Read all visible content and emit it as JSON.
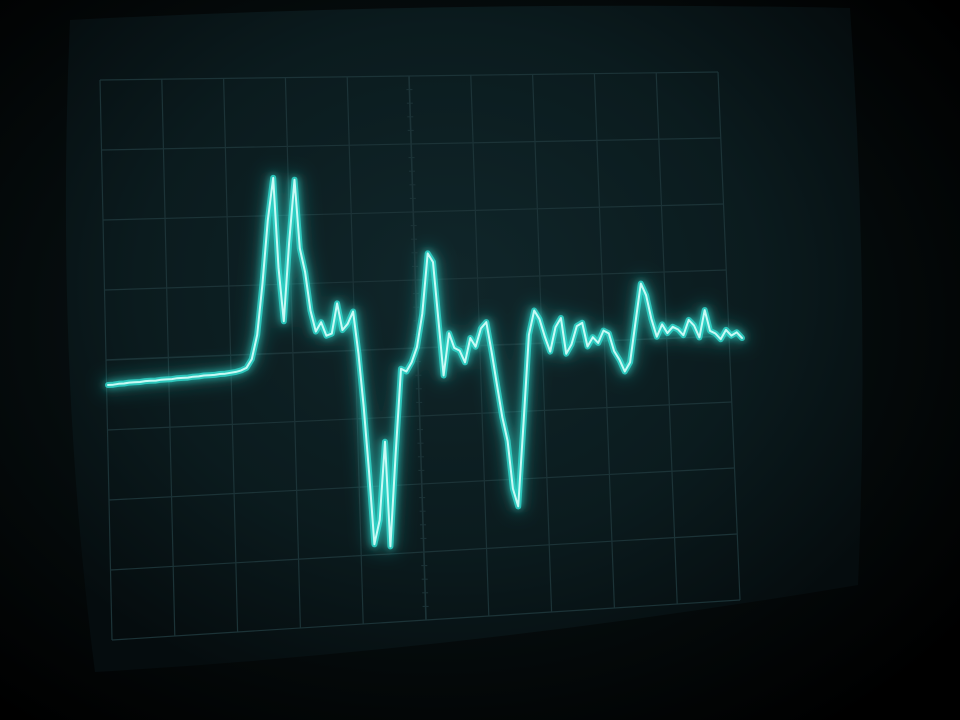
{
  "photo": {
    "subject": "",
    "colors": {
      "background": "#000000",
      "screen_glass": "#0b1b1e",
      "screen_glass_edge": "#050c0e",
      "graticule": "#1c3337",
      "trace_core": "#d9fffb",
      "trace_glow": "#2fd3c8"
    },
    "graticule": {
      "columns": 10,
      "rows": 8
    },
    "trace_samples": [
      0.0,
      0.0,
      0.01,
      0.01,
      0.02,
      0.02,
      0.02,
      0.03,
      0.03,
      0.03,
      0.04,
      0.04,
      0.04,
      0.05,
      0.05,
      0.05,
      0.06,
      0.06,
      0.07,
      0.07,
      0.07,
      0.08,
      0.08,
      0.09,
      0.1,
      0.12,
      0.16,
      0.3,
      0.7,
      1.55,
      2.6,
      3.3,
      1.8,
      0.9,
      2.2,
      3.25,
      2.1,
      1.7,
      1.05,
      0.7,
      0.85,
      0.62,
      0.65,
      1.15,
      0.7,
      0.8,
      1.0,
      0.3,
      -0.6,
      -1.7,
      -2.9,
      -2.5,
      -1.2,
      -2.95,
      -1.4,
      0.0,
      -0.05,
      0.1,
      0.35,
      0.9,
      1.9,
      1.75,
      0.8,
      -0.15,
      0.55,
      0.3,
      0.25,
      0.05,
      0.45,
      0.3,
      0.6,
      0.7,
      0.2,
      -0.35,
      -0.9,
      -1.3,
      -2.1,
      -2.4,
      -1.0,
      0.45,
      0.85,
      0.7,
      0.4,
      0.15,
      0.55,
      0.7,
      0.1,
      0.25,
      0.55,
      0.6,
      0.2,
      0.35,
      0.25,
      0.45,
      0.4,
      0.1,
      -0.05,
      -0.25,
      -0.1,
      0.55,
      1.2,
      1.0,
      0.6,
      0.3,
      0.5,
      0.35,
      0.45,
      0.4,
      0.3,
      0.55,
      0.45,
      0.25,
      0.7,
      0.35,
      0.3,
      0.2,
      0.35,
      0.25,
      0.3,
      0.2
    ]
  }
}
